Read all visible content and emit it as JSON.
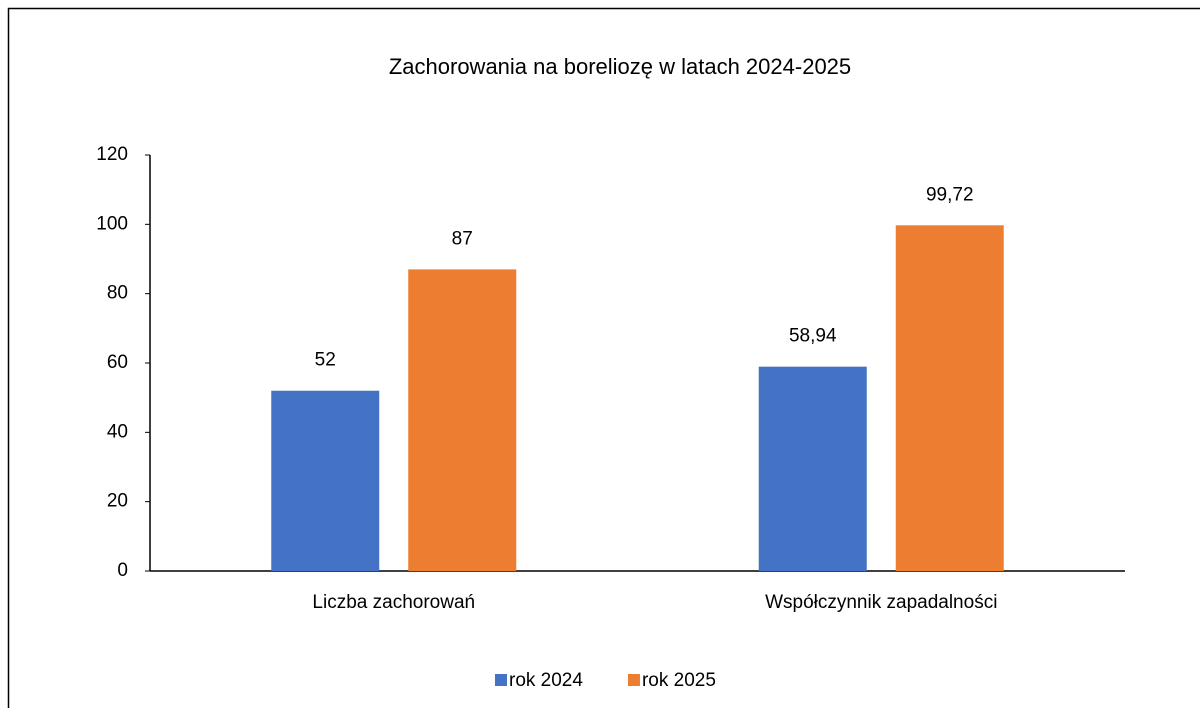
{
  "chart_data": {
    "type": "bar",
    "title": "Zachorowania na boreliozę w latach 2024-2025",
    "categories": [
      "Liczba zachorowań",
      "Współczynnik zapadalności"
    ],
    "series": [
      {
        "name": "rok 2024",
        "color": "#4472c4",
        "values": [
          52,
          58.94
        ],
        "value_labels": [
          "52",
          "58,94"
        ]
      },
      {
        "name": "rok 2025",
        "color": "#ed7d31",
        "values": [
          87,
          99.72
        ],
        "value_labels": [
          "87",
          "99,72"
        ]
      }
    ],
    "ylim": [
      0,
      120
    ],
    "yticks": [
      0,
      20,
      40,
      60,
      80,
      100,
      120
    ],
    "grid": false,
    "legend": "bottom"
  }
}
